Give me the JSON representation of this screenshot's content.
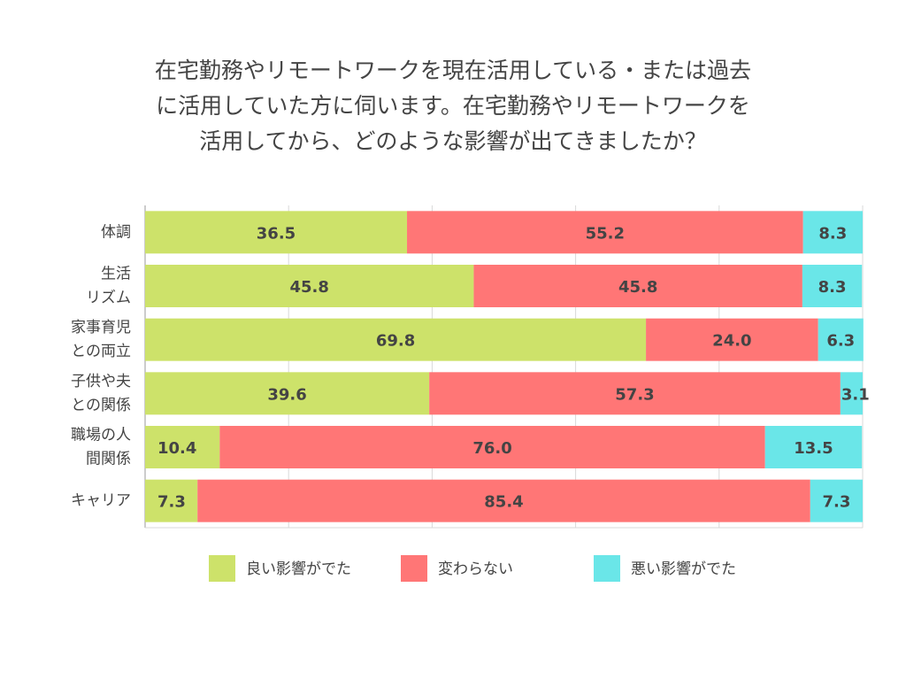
{
  "chart_data": {
    "type": "bar",
    "orientation": "horizontal",
    "stacked": true,
    "title_lines": [
      "在宅勤務やリモートワークを現在活用している・または過去",
      "に活用していた方に伺います。在宅勤務やリモートワークを",
      "活用してから、どのような影響が出てきましたか？"
    ],
    "categories": [
      [
        "体調"
      ],
      [
        "生活",
        "リズム"
      ],
      [
        "家事育児",
        "との両立"
      ],
      [
        "子供や夫",
        "との関係"
      ],
      [
        "職場の人",
        "間関係"
      ],
      [
        "キャリア"
      ]
    ],
    "series": [
      {
        "name": "良い影響がでた",
        "color": "#cde26a",
        "values": [
          36.5,
          45.8,
          69.8,
          39.6,
          10.4,
          7.3
        ]
      },
      {
        "name": "変わらない",
        "color": "#ff7676",
        "values": [
          55.2,
          45.8,
          24.0,
          57.3,
          76.0,
          85.4
        ]
      },
      {
        "name": "悪い影響がでた",
        "color": "#6ae6e8",
        "values": [
          8.3,
          8.3,
          6.3,
          3.1,
          13.5,
          7.3
        ]
      }
    ],
    "value_labels": [
      [
        "36.5",
        "55.2",
        "8.3"
      ],
      [
        "45.8",
        "45.8",
        "8.3"
      ],
      [
        "69.8",
        "24.0",
        "6.3"
      ],
      [
        "39.6",
        "57.3",
        "3.1"
      ],
      [
        "10.4",
        "76.0",
        "13.5"
      ],
      [
        "7.3",
        "85.4",
        "7.3"
      ]
    ],
    "xlim": [
      0,
      100
    ],
    "grid": true,
    "legend_position": "bottom"
  }
}
